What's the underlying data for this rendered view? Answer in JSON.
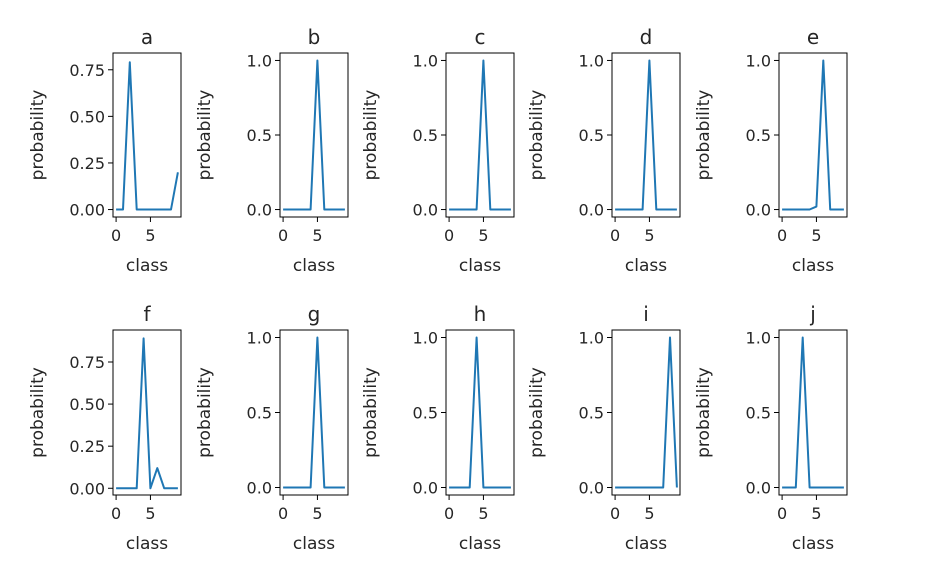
{
  "chart_data": [
    {
      "type": "line",
      "title": "a",
      "xlabel": "class",
      "ylabel": "probability",
      "xlim": [
        -0.45,
        9.45
      ],
      "ylim": [
        -0.04,
        0.84
      ],
      "xticks": [
        0,
        5
      ],
      "xtick_labels": [
        "0",
        "5"
      ],
      "yticks": [
        0,
        0.25,
        0.5,
        0.75
      ],
      "ytick_labels": [
        "0.00",
        "0.25",
        "0.50",
        "0.75"
      ],
      "x": [
        0,
        1,
        2,
        3,
        4,
        5,
        6,
        7,
        8,
        9
      ],
      "values": [
        0,
        0,
        0.79,
        0,
        0,
        0,
        0,
        0,
        0,
        0.2
      ],
      "color": "#1f77b4"
    },
    {
      "type": "line",
      "title": "b",
      "xlabel": "class",
      "ylabel": "probability",
      "xlim": [
        -0.45,
        9.45
      ],
      "ylim": [
        -0.05,
        1.05
      ],
      "xticks": [
        0,
        5
      ],
      "xtick_labels": [
        "0",
        "5"
      ],
      "yticks": [
        0,
        0.5,
        1
      ],
      "ytick_labels": [
        "0.0",
        "0.5",
        "1.0"
      ],
      "x": [
        0,
        1,
        2,
        3,
        4,
        5,
        6,
        7,
        8,
        9
      ],
      "values": [
        0,
        0,
        0,
        0,
        0,
        1,
        0,
        0,
        0,
        0
      ],
      "color": "#1f77b4"
    },
    {
      "type": "line",
      "title": "c",
      "xlabel": "class",
      "ylabel": "probability",
      "xlim": [
        -0.45,
        9.45
      ],
      "ylim": [
        -0.05,
        1.05
      ],
      "xticks": [
        0,
        5
      ],
      "xtick_labels": [
        "0",
        "5"
      ],
      "yticks": [
        0,
        0.5,
        1
      ],
      "ytick_labels": [
        "0.0",
        "0.5",
        "1.0"
      ],
      "x": [
        0,
        1,
        2,
        3,
        4,
        5,
        6,
        7,
        8,
        9
      ],
      "values": [
        0,
        0,
        0,
        0,
        0,
        1,
        0,
        0,
        0,
        0
      ],
      "color": "#1f77b4"
    },
    {
      "type": "line",
      "title": "d",
      "xlabel": "class",
      "ylabel": "probability",
      "xlim": [
        -0.45,
        9.45
      ],
      "ylim": [
        -0.05,
        1.05
      ],
      "xticks": [
        0,
        5
      ],
      "xtick_labels": [
        "0",
        "5"
      ],
      "yticks": [
        0,
        0.5,
        1
      ],
      "ytick_labels": [
        "0.0",
        "0.5",
        "1.0"
      ],
      "x": [
        0,
        1,
        2,
        3,
        4,
        5,
        6,
        7,
        8,
        9
      ],
      "values": [
        0,
        0,
        0,
        0,
        0,
        1,
        0,
        0,
        0,
        0
      ],
      "color": "#1f77b4"
    },
    {
      "type": "line",
      "title": "e",
      "xlabel": "class",
      "ylabel": "probability",
      "xlim": [
        -0.45,
        9.45
      ],
      "ylim": [
        -0.05,
        1.05
      ],
      "xticks": [
        0,
        5
      ],
      "xtick_labels": [
        "0",
        "5"
      ],
      "yticks": [
        0,
        0.5,
        1
      ],
      "ytick_labels": [
        "0.0",
        "0.5",
        "1.0"
      ],
      "x": [
        0,
        1,
        2,
        3,
        4,
        5,
        6,
        7,
        8,
        9
      ],
      "values": [
        0,
        0,
        0,
        0,
        0,
        0.02,
        1,
        0,
        0,
        0
      ],
      "color": "#1f77b4"
    },
    {
      "type": "line",
      "title": "f",
      "xlabel": "class",
      "ylabel": "probability",
      "xlim": [
        -0.45,
        9.45
      ],
      "ylim": [
        -0.04,
        0.94
      ],
      "xticks": [
        0,
        5
      ],
      "xtick_labels": [
        "0",
        "5"
      ],
      "yticks": [
        0,
        0.25,
        0.5,
        0.75
      ],
      "ytick_labels": [
        "0.00",
        "0.25",
        "0.50",
        "0.75"
      ],
      "x": [
        0,
        1,
        2,
        3,
        4,
        5,
        6,
        7,
        8,
        9
      ],
      "values": [
        0,
        0,
        0,
        0,
        0.89,
        0,
        0.12,
        0,
        0,
        0
      ],
      "color": "#1f77b4"
    },
    {
      "type": "line",
      "title": "g",
      "xlabel": "class",
      "ylabel": "probability",
      "xlim": [
        -0.45,
        9.45
      ],
      "ylim": [
        -0.05,
        1.05
      ],
      "xticks": [
        0,
        5
      ],
      "xtick_labels": [
        "0",
        "5"
      ],
      "yticks": [
        0,
        0.5,
        1
      ],
      "ytick_labels": [
        "0.0",
        "0.5",
        "1.0"
      ],
      "x": [
        0,
        1,
        2,
        3,
        4,
        5,
        6,
        7,
        8,
        9
      ],
      "values": [
        0,
        0,
        0,
        0,
        0,
        1,
        0,
        0,
        0,
        0
      ],
      "color": "#1f77b4"
    },
    {
      "type": "line",
      "title": "h",
      "xlabel": "class",
      "ylabel": "probability",
      "xlim": [
        -0.45,
        9.45
      ],
      "ylim": [
        -0.05,
        1.05
      ],
      "xticks": [
        0,
        5
      ],
      "xtick_labels": [
        "0",
        "5"
      ],
      "yticks": [
        0,
        0.5,
        1
      ],
      "ytick_labels": [
        "0.0",
        "0.5",
        "1.0"
      ],
      "x": [
        0,
        1,
        2,
        3,
        4,
        5,
        6,
        7,
        8,
        9
      ],
      "values": [
        0,
        0,
        0,
        0,
        1,
        0,
        0,
        0,
        0,
        0
      ],
      "color": "#1f77b4"
    },
    {
      "type": "line",
      "title": "i",
      "xlabel": "class",
      "ylabel": "probability",
      "xlim": [
        -0.45,
        9.45
      ],
      "ylim": [
        -0.05,
        1.05
      ],
      "xticks": [
        0,
        5
      ],
      "xtick_labels": [
        "0",
        "5"
      ],
      "yticks": [
        0,
        0.5,
        1
      ],
      "ytick_labels": [
        "0.0",
        "0.5",
        "1.0"
      ],
      "x": [
        0,
        1,
        2,
        3,
        4,
        5,
        6,
        7,
        8,
        9
      ],
      "values": [
        0,
        0,
        0,
        0,
        0,
        0,
        0,
        0,
        1,
        0
      ],
      "color": "#1f77b4"
    },
    {
      "type": "line",
      "title": "j",
      "xlabel": "class",
      "ylabel": "probability",
      "xlim": [
        -0.45,
        9.45
      ],
      "ylim": [
        -0.05,
        1.05
      ],
      "xticks": [
        0,
        5
      ],
      "xtick_labels": [
        "0",
        "5"
      ],
      "yticks": [
        0,
        0.5,
        1
      ],
      "ytick_labels": [
        "0.0",
        "0.5",
        "1.0"
      ],
      "x": [
        0,
        1,
        2,
        3,
        4,
        5,
        6,
        7,
        8,
        9
      ],
      "values": [
        0,
        0,
        0,
        1,
        0,
        0,
        0,
        0,
        0,
        0
      ],
      "color": "#1f77b4"
    }
  ]
}
